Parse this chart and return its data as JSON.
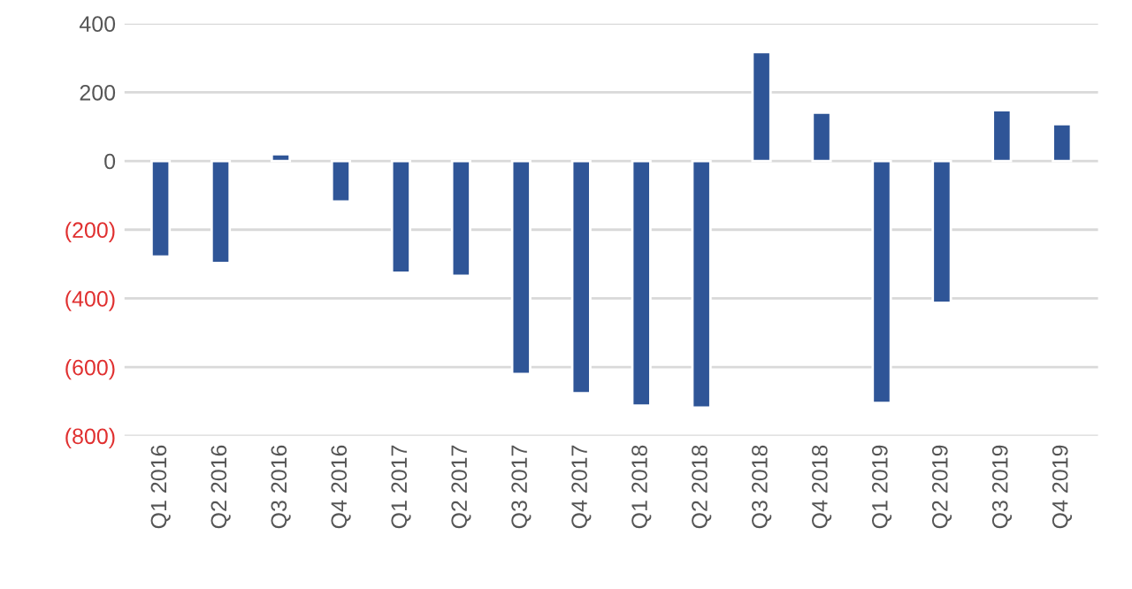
{
  "chart_data": {
    "type": "bar",
    "categories": [
      "Q1 2016",
      "Q2 2016",
      "Q3 2016",
      "Q4 2016",
      "Q1 2017",
      "Q2 2017",
      "Q3 2017",
      "Q4 2017",
      "Q1 2018",
      "Q2 2018",
      "Q3 2018",
      "Q4 2018",
      "Q1 2019",
      "Q2 2019",
      "Q3 2019",
      "Q4 2019"
    ],
    "values": [
      -278,
      -297,
      20,
      -118,
      -325,
      -334,
      -620,
      -676,
      -712,
      -718,
      317,
      141,
      -704,
      -413,
      148,
      107
    ],
    "color": "#2f5597",
    "ylim": [
      -800,
      400
    ],
    "yticks": [
      {
        "value": -800,
        "label": "(800)"
      },
      {
        "value": -600,
        "label": "(600)"
      },
      {
        "value": -400,
        "label": "(400)"
      },
      {
        "value": -200,
        "label": "(200)"
      },
      0,
      200,
      400
    ],
    "grid": "y"
  }
}
